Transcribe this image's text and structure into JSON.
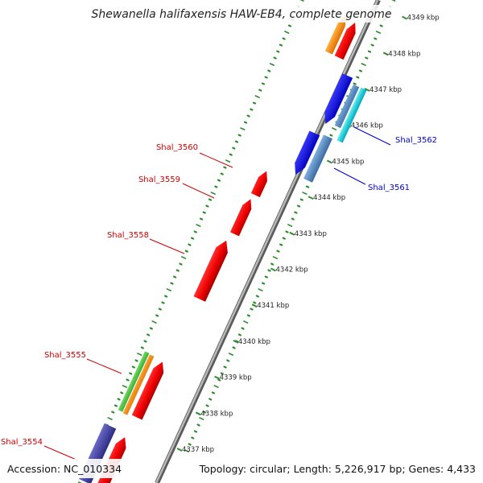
{
  "title": "Shewanella halifaxensis HAW-EB4, complete genome",
  "footer": {
    "accession": "Accession: NC_010334",
    "summary": "Topology: circular; Length: 5,226,917 bp; Genes: 4,433"
  },
  "colors": {
    "backbone": "#8c8c8c",
    "forward_label": "#cc0000",
    "reverse_label": "#0000cc",
    "tick": "#2e8b2e"
  },
  "ticks": [
    {
      "label": "4337 kbp"
    },
    {
      "label": "4338 kbp"
    },
    {
      "label": "4339 kbp"
    },
    {
      "label": "4340 kbp"
    },
    {
      "label": "4341 kbp"
    },
    {
      "label": "4342 kbp"
    },
    {
      "label": "4343 kbp"
    },
    {
      "label": "4344 kbp"
    },
    {
      "label": "4345 kbp"
    },
    {
      "label": "4346 kbp"
    },
    {
      "label": "4347 kbp"
    },
    {
      "label": "4348 kbp"
    },
    {
      "label": "4349 kbp"
    }
  ],
  "gene_labels": [
    {
      "name": "Shal_3560",
      "strand": "forward"
    },
    {
      "name": "Shal_3559",
      "strand": "forward"
    },
    {
      "name": "Shal_3558",
      "strand": "forward"
    },
    {
      "name": "Shal_3555",
      "strand": "forward"
    },
    {
      "name": "Shal_3554",
      "strand": "forward"
    },
    {
      "name": "Shal_3562",
      "strand": "reverse"
    },
    {
      "name": "Shal_3561",
      "strand": "reverse"
    }
  ]
}
